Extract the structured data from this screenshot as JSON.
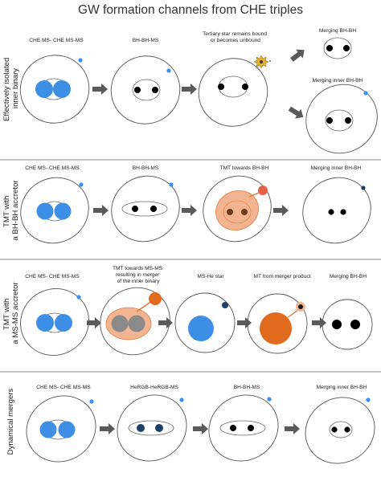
{
  "title": "GW formation channels from CHE triples",
  "colors": {
    "ms_blue": "#3d8fe6",
    "companion_blue": "#3a8ff0",
    "bh_black": "#000000",
    "merger_orange": "#e06a1d",
    "envelope_orange": "#f3b591",
    "herg_navy": "#1d3f66",
    "grey_star": "#8a8a8a",
    "arrow_grey": "#5a5a5a",
    "sun_yellow": "#e6b12a"
  },
  "rows": [
    {
      "label_lines": [
        "Effectively isolated",
        "inner binary"
      ],
      "stages": [
        {
          "label_lines": [
            "CHE MS- CHE MS-MS"
          ]
        },
        {
          "label_lines": [
            "BH-BH-MS"
          ]
        },
        {
          "label_lines": [
            "Tertiary star remains bound",
            "or becomes unbound"
          ]
        },
        {
          "label_lines": [
            "Merging BH-BH"
          ]
        },
        {
          "label_lines": [
            "Merging inner BH-BH"
          ]
        }
      ]
    },
    {
      "label_lines": [
        "TMT with",
        "a BH-BH accretor"
      ],
      "stages": [
        {
          "label_lines": [
            "CHE MS- CHE MS-MS"
          ]
        },
        {
          "label_lines": [
            "BH-BH-MS"
          ]
        },
        {
          "label_lines": [
            "TMT towards BH-BH"
          ]
        },
        {
          "label_lines": [
            "Merging inner BH-BH"
          ]
        }
      ]
    },
    {
      "label_lines": [
        "TMT with",
        "a MS-MS accretor"
      ],
      "stages": [
        {
          "label_lines": [
            "CHE MS- CHE MS-MS"
          ]
        },
        {
          "label_lines": [
            "TMT towards MS-MS",
            "resulting in merger",
            "of the inner binary"
          ]
        },
        {
          "label_lines": [
            "MS-He star"
          ]
        },
        {
          "label_lines": [
            "MT from merger product"
          ]
        },
        {
          "label_lines": [
            "Merging BH-BH"
          ]
        }
      ]
    },
    {
      "label_lines": [
        "Dynamical mergers"
      ],
      "stages": [
        {
          "label_lines": [
            "CHE MS- CHE MS-MS"
          ]
        },
        {
          "label_lines": [
            "HeRGB-HeRGB-MS"
          ]
        },
        {
          "label_lines": [
            "BH-BH-MS"
          ]
        },
        {
          "label_lines": [
            "Merging inner BH-BH"
          ]
        }
      ]
    }
  ]
}
